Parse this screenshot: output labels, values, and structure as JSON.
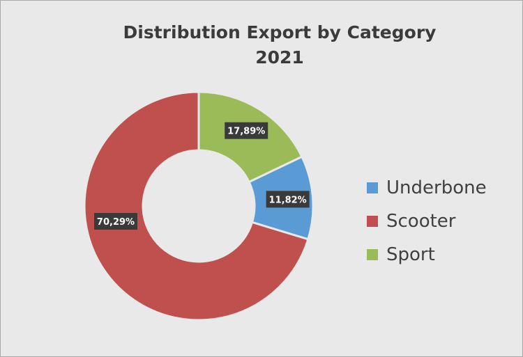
{
  "chart_data": {
    "type": "pie",
    "style": "donut",
    "title_line1": "Distribution Export by Category",
    "title_line2": "2021",
    "categories": [
      "Underbone",
      "Scooter",
      "Sport"
    ],
    "values": [
      11.82,
      70.29,
      17.89
    ],
    "value_labels": [
      "11,82%",
      "70,29%",
      "17,89%"
    ],
    "colors": [
      "#5b9bd5",
      "#c0504d",
      "#9bbb59"
    ],
    "legend_position": "right"
  }
}
